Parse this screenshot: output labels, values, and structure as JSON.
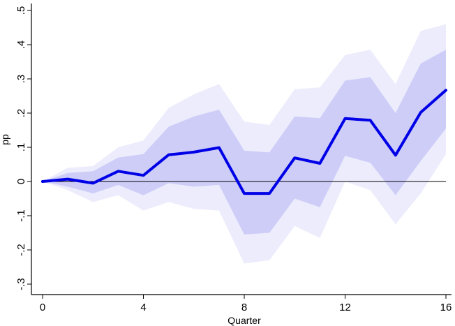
{
  "chart_data": {
    "type": "line",
    "title": "",
    "xlabel": "Quarter",
    "ylabel": "pp",
    "xlim": [
      0,
      16
    ],
    "ylim": [
      -0.33,
      0.51
    ],
    "x_ticks": [
      0,
      4,
      8,
      12,
      16
    ],
    "x_tick_labels": [
      "0",
      "4",
      "8",
      "12",
      "16"
    ],
    "y_ticks": [
      -0.3,
      -0.2,
      -0.1,
      0,
      0.1,
      0.2,
      0.3,
      0.4,
      0.5
    ],
    "y_tick_labels": [
      "-.3",
      "-.2",
      "-.1",
      "0",
      ".1",
      ".2",
      ".3",
      ".4",
      ".5"
    ],
    "zero_line": true,
    "grid": false,
    "x": [
      0,
      1,
      2,
      3,
      4,
      5,
      6,
      7,
      8,
      9,
      10,
      11,
      12,
      13,
      14,
      15,
      16
    ],
    "series": [
      {
        "values": [
          0,
          0.007,
          -0.005,
          0.03,
          0.018,
          0.078,
          0.086,
          0.099,
          -0.035,
          -0.035,
          0.069,
          0.053,
          0.184,
          0.179,
          0.077,
          0.202,
          0.267
        ],
        "color": "#0000e6"
      }
    ],
    "bands": [
      {
        "lower": [
          0,
          -0.025,
          -0.06,
          -0.04,
          -0.085,
          -0.06,
          -0.08,
          -0.085,
          -0.24,
          -0.23,
          -0.13,
          -0.165,
          0.0,
          -0.025,
          -0.125,
          -0.035,
          0.08
        ],
        "upper": [
          0,
          0.04,
          0.045,
          0.1,
          0.12,
          0.215,
          0.255,
          0.285,
          0.175,
          0.165,
          0.27,
          0.275,
          0.37,
          0.385,
          0.285,
          0.44,
          0.46
        ],
        "color": "#ececfc"
      },
      {
        "lower": [
          0,
          -0.015,
          -0.035,
          -0.01,
          -0.04,
          -0.005,
          -0.015,
          -0.01,
          -0.155,
          -0.15,
          -0.05,
          -0.075,
          0.075,
          0.055,
          -0.04,
          0.06,
          0.155
        ],
        "upper": [
          0,
          0.025,
          0.03,
          0.07,
          0.08,
          0.16,
          0.19,
          0.21,
          0.09,
          0.085,
          0.19,
          0.185,
          0.295,
          0.305,
          0.2,
          0.345,
          0.385
        ],
        "color": "#cdcdf8"
      }
    ]
  }
}
